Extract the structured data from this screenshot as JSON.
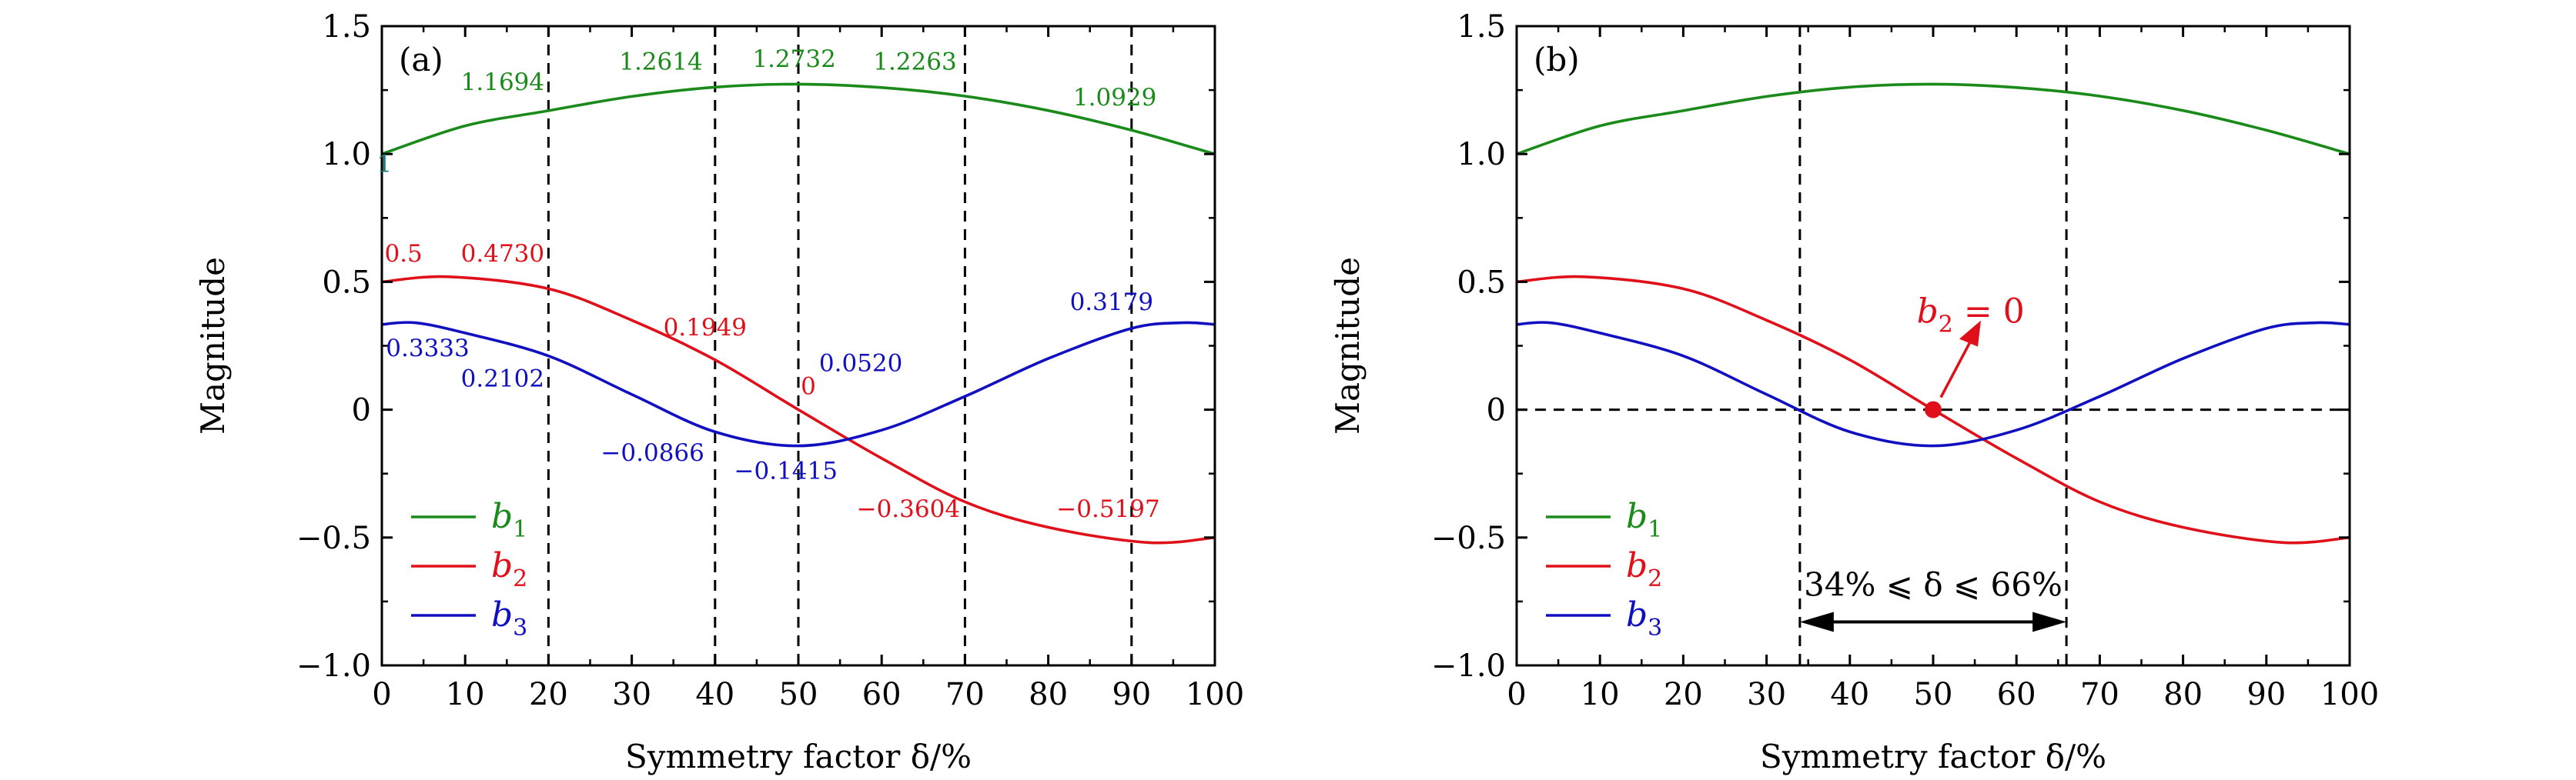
{
  "chart_data": [
    {
      "type": "line",
      "panel_label": "(a)",
      "xlabel": "Symmetry factor δ/%",
      "ylabel": "Magnitude",
      "xlim": [
        0,
        100
      ],
      "ylim": [
        -1.0,
        1.5
      ],
      "xticks": [
        0,
        10,
        20,
        30,
        40,
        50,
        60,
        70,
        80,
        90,
        100
      ],
      "yticks": [
        1.5,
        1.0,
        0.5,
        0,
        -0.5,
        -1.0
      ],
      "ytick_labels": [
        "1.5",
        "1.0",
        "0.5",
        "0",
        "−0.5",
        "−1.0"
      ],
      "grid": false,
      "legend_position": "bottom-left",
      "vlines_x": [
        20,
        40,
        50,
        70,
        90
      ],
      "hlines_y": [],
      "series": [
        {
          "name": "b1",
          "sub": "1",
          "color": "#1a8a1a",
          "x": [
            0,
            10,
            20,
            30,
            40,
            50,
            60,
            70,
            80,
            90,
            100
          ],
          "y": [
            1.0,
            1.11,
            1.1694,
            1.225,
            1.2614,
            1.2732,
            1.26,
            1.2263,
            1.17,
            1.0929,
            1.0
          ]
        },
        {
          "name": "b2",
          "sub": "2",
          "color": "#e0101a",
          "x": [
            0,
            8,
            20,
            30,
            40,
            50,
            60,
            70,
            80,
            92,
            100
          ],
          "y": [
            0.5,
            0.52,
            0.473,
            0.35,
            0.1949,
            0.0,
            -0.19,
            -0.3604,
            -0.46,
            -0.5197,
            -0.5
          ]
        },
        {
          "name": "b3",
          "sub": "3",
          "color": "#1010c0",
          "x": [
            0,
            4,
            10,
            20,
            30,
            40,
            50,
            60,
            70,
            80,
            90,
            96,
            100
          ],
          "y": [
            0.3333,
            0.34,
            0.3,
            0.2102,
            0.06,
            -0.0866,
            -0.1415,
            -0.08,
            0.052,
            0.2,
            0.3179,
            0.34,
            0.3333
          ]
        }
      ],
      "annotations": [
        {
          "text": "1",
          "x": 0.3,
          "y": 0.93,
          "color": "#1a7a7a"
        },
        {
          "text": "1.1694",
          "x": 14.5,
          "y": 1.25,
          "color": "#1a8a1a"
        },
        {
          "text": "1.2614",
          "x": 33.5,
          "y": 1.33,
          "color": "#1a8a1a"
        },
        {
          "text": "1.2732",
          "x": 49.5,
          "y": 1.34,
          "color": "#1a8a1a"
        },
        {
          "text": "1.2263",
          "x": 64,
          "y": 1.33,
          "color": "#1a8a1a"
        },
        {
          "text": "1.0929",
          "x": 88,
          "y": 1.19,
          "color": "#1a8a1a"
        },
        {
          "text": "0.5",
          "x": 2.6,
          "y": 0.58,
          "color": "#e0101a"
        },
        {
          "text": "0.4730",
          "x": 14.5,
          "y": 0.58,
          "color": "#e0101a"
        },
        {
          "text": "0.1949",
          "x": 38.8,
          "y": 0.29,
          "color": "#e0101a"
        },
        {
          "text": "0",
          "x": 51.2,
          "y": 0.06,
          "color": "#e0101a"
        },
        {
          "text": "−0.3604",
          "x": 63.2,
          "y": -0.42,
          "color": "#e0101a"
        },
        {
          "text": "−0.5197",
          "x": 87.2,
          "y": -0.42,
          "color": "#e0101a"
        },
        {
          "text": "0.3333",
          "x": 5.5,
          "y": 0.21,
          "color": "#1010c0"
        },
        {
          "text": "0.2102",
          "x": 14.5,
          "y": 0.09,
          "color": "#1010c0"
        },
        {
          "text": "0.0520",
          "x": 57.5,
          "y": 0.15,
          "color": "#1010c0"
        },
        {
          "text": "0.3179",
          "x": 87.6,
          "y": 0.39,
          "color": "#1010c0"
        },
        {
          "text": "−0.0866",
          "x": 32.5,
          "y": -0.2,
          "color": "#1010c0"
        },
        {
          "text": "−0.1415",
          "x": 48.5,
          "y": -0.27,
          "color": "#1010c0"
        }
      ]
    },
    {
      "type": "line",
      "panel_label": "(b)",
      "xlabel": "Symmetry factor δ/%",
      "ylabel": "Magnitude",
      "xlim": [
        0,
        100
      ],
      "ylim": [
        -1.0,
        1.5
      ],
      "xticks": [
        0,
        10,
        20,
        30,
        40,
        50,
        60,
        70,
        80,
        90,
        100
      ],
      "yticks": [
        1.5,
        1.0,
        0.5,
        0,
        -0.5,
        -1.0
      ],
      "ytick_labels": [
        "1.5",
        "1.0",
        "0.5",
        "0",
        "−0.5",
        "−1.0"
      ],
      "grid": false,
      "legend_position": "bottom-left",
      "vlines_x": [
        34,
        66
      ],
      "hlines_y": [
        0
      ],
      "series": [
        {
          "name": "b1",
          "sub": "1",
          "color": "#1a8a1a",
          "x": [
            0,
            10,
            20,
            30,
            40,
            50,
            60,
            70,
            80,
            90,
            100
          ],
          "y": [
            1.0,
            1.11,
            1.1694,
            1.225,
            1.2614,
            1.2732,
            1.26,
            1.2263,
            1.17,
            1.0929,
            1.0
          ]
        },
        {
          "name": "b2",
          "sub": "2",
          "color": "#e0101a",
          "x": [
            0,
            8,
            20,
            30,
            40,
            50,
            60,
            70,
            80,
            92,
            100
          ],
          "y": [
            0.5,
            0.52,
            0.473,
            0.35,
            0.1949,
            0.0,
            -0.19,
            -0.3604,
            -0.46,
            -0.5197,
            -0.5
          ]
        },
        {
          "name": "b3",
          "sub": "3",
          "color": "#1010c0",
          "x": [
            0,
            4,
            10,
            20,
            30,
            40,
            50,
            60,
            70,
            80,
            90,
            96,
            100
          ],
          "y": [
            0.3333,
            0.34,
            0.3,
            0.2102,
            0.06,
            -0.0866,
            -0.1415,
            -0.08,
            0.052,
            0.2,
            0.3179,
            0.34,
            0.3333
          ]
        }
      ],
      "marker": {
        "x": 50,
        "y": 0,
        "color": "#e0101a",
        "label_main": "b",
        "label_sub": "2",
        "label_rest": " = 0",
        "label_x": 54.5,
        "label_y": 0.34
      },
      "range_label": "34% ⩽ δ ⩽ 66%",
      "range_x": [
        34,
        66
      ],
      "range_y": -0.83
    }
  ]
}
